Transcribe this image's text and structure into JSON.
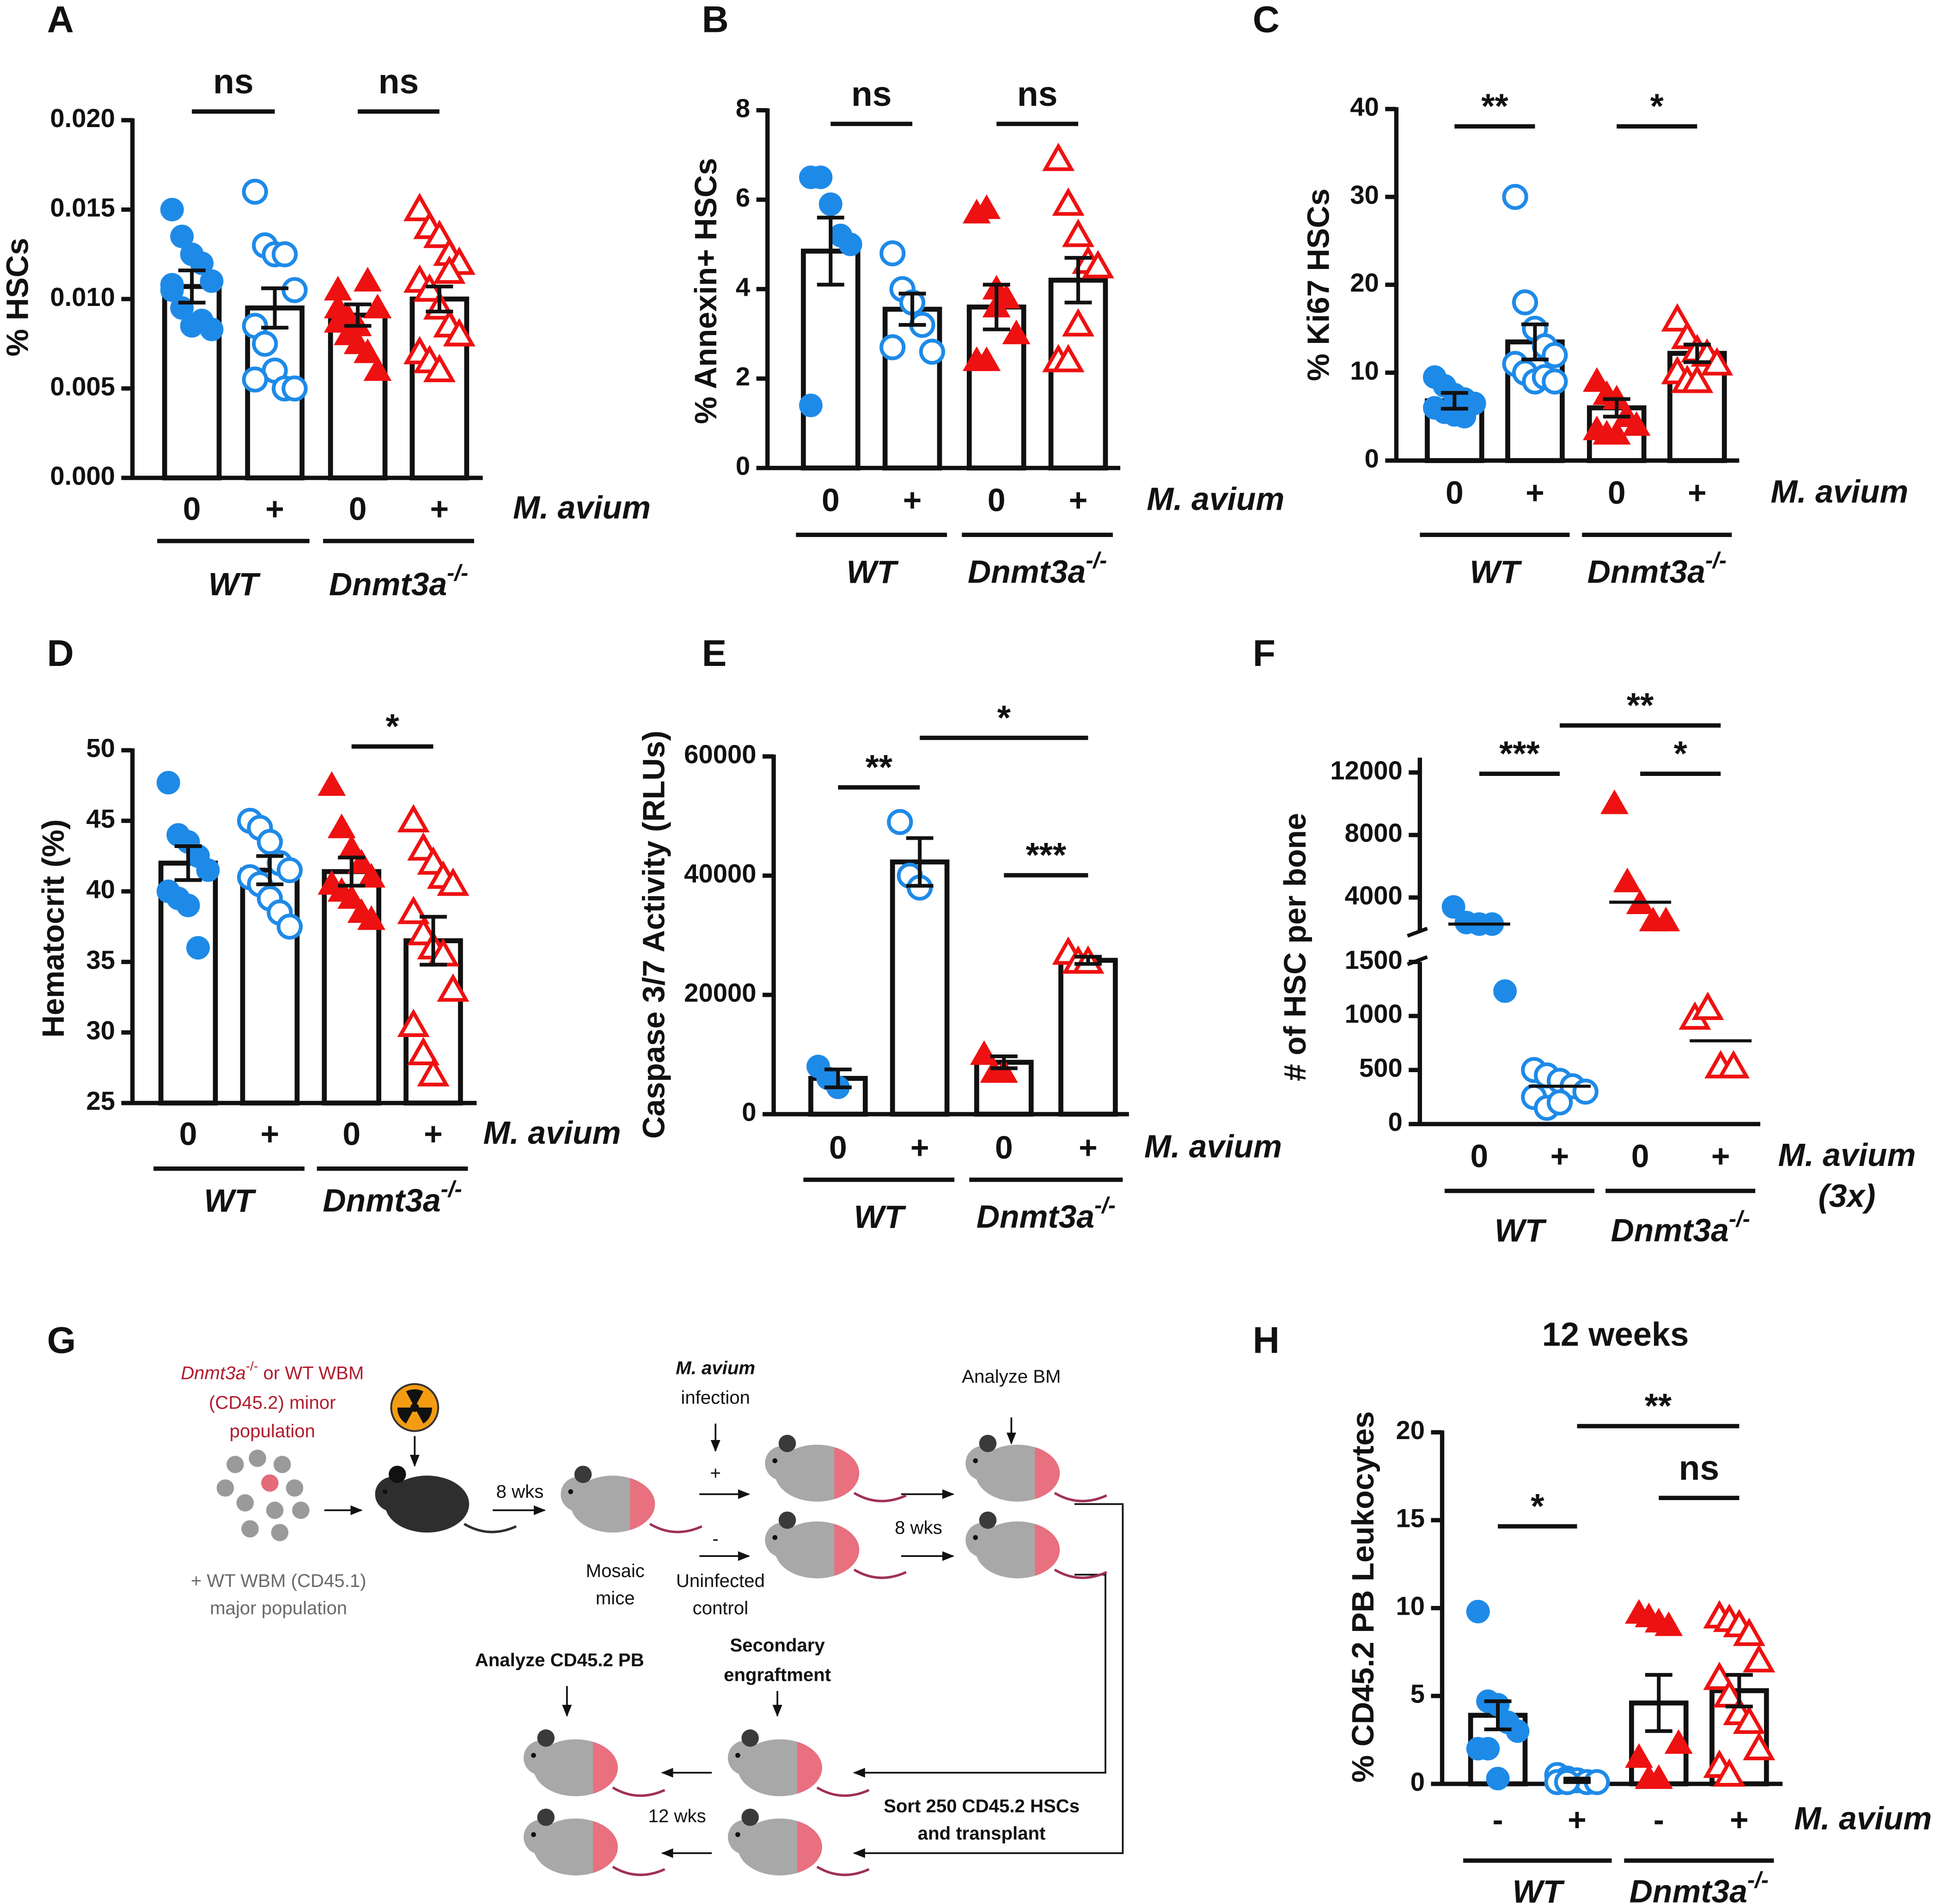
{
  "chart_data": [
    {
      "type": "bar",
      "panel": "A",
      "ylabel": "% HSCs",
      "categories": [
        "0",
        "+",
        "0",
        "+"
      ],
      "factor_label": "M. avium",
      "groups": [
        "WT",
        "Dnmt3a-/-"
      ],
      "colors": [
        "#1e8ae8",
        "#1e8ae8",
        "#ee1111",
        "#ee1111"
      ],
      "markers": [
        "filled-circle",
        "open-circle",
        "filled-triangle",
        "open-triangle"
      ],
      "ylim": [
        0,
        0.02
      ],
      "yticks": [
        {
          "value": 0,
          "label": "0.000"
        },
        {
          "value": 0.005,
          "label": "0.005"
        },
        {
          "value": 0.01,
          "label": "0.010"
        },
        {
          "value": 0.015,
          "label": "0.015"
        },
        {
          "value": 0.02,
          "label": "0.020"
        }
      ],
      "means": [
        0.0107,
        0.0095,
        0.0091,
        0.01
      ],
      "errors": [
        0.0009,
        0.0011,
        0.0006,
        0.0007
      ],
      "points": [
        [
          0.015,
          0.0135,
          0.0125,
          0.012,
          0.011,
          0.0105,
          0.0095,
          0.0085,
          0.0088,
          0.0083,
          0.0108
        ],
        [
          0.016,
          0.013,
          0.0125,
          0.0125,
          0.0105,
          0.0085,
          0.0075,
          0.006,
          0.005,
          0.005,
          0.0055
        ],
        [
          0.0095,
          0.009,
          0.0085,
          0.011,
          0.0095,
          0.0087,
          0.008,
          0.0075,
          0.007,
          0.006,
          0.0105
        ],
        [
          0.015,
          0.014,
          0.0135,
          0.0125,
          0.012,
          0.011,
          0.0105,
          0.0095,
          0.0085,
          0.008,
          0.007,
          0.0065,
          0.006,
          0.0115
        ]
      ],
      "annotations": [
        {
          "text": "ns",
          "between": [
            0,
            1
          ]
        },
        {
          "text": "ns",
          "between": [
            2,
            3
          ]
        }
      ]
    },
    {
      "type": "bar",
      "panel": "B",
      "ylabel": "% Annexin+ HSCs",
      "categories": [
        "0",
        "+",
        "0",
        "+"
      ],
      "factor_label": "M. avium",
      "groups": [
        "WT",
        "Dnmt3a-/-"
      ],
      "colors": [
        "#1e8ae8",
        "#1e8ae8",
        "#ee1111",
        "#ee1111"
      ],
      "markers": [
        "filled-circle",
        "open-circle",
        "filled-triangle",
        "open-triangle"
      ],
      "ylim": [
        0,
        8
      ],
      "yticks": [
        0,
        2,
        4,
        6,
        8
      ],
      "means": [
        4.85,
        3.55,
        3.6,
        4.2
      ],
      "errors": [
        0.75,
        0.35,
        0.5,
        0.5
      ],
      "points": [
        [
          6.5,
          6.5,
          5.9,
          5.2,
          5.0,
          1.4
        ],
        [
          4.8,
          4.0,
          3.7,
          3.2,
          2.6,
          2.7
        ],
        [
          5.7,
          5.8,
          4.0,
          3.8,
          3.0,
          2.4,
          2.4,
          3.6
        ],
        [
          6.9,
          5.9,
          5.2,
          4.6,
          4.5,
          2.4,
          2.4,
          3.2
        ]
      ],
      "annotations": [
        {
          "text": "ns",
          "between": [
            0,
            1
          ]
        },
        {
          "text": "ns",
          "between": [
            2,
            3
          ]
        }
      ]
    },
    {
      "type": "bar",
      "panel": "C",
      "ylabel": "% Ki67 HSCs",
      "categories": [
        "0",
        "+",
        "0",
        "+"
      ],
      "factor_label": "M. avium",
      "groups": [
        "WT",
        "Dnmt3a-/-"
      ],
      "colors": [
        "#1e8ae8",
        "#1e8ae8",
        "#ee1111",
        "#ee1111"
      ],
      "markers": [
        "filled-circle",
        "open-circle",
        "filled-triangle",
        "open-triangle"
      ],
      "ylim": [
        0,
        40
      ],
      "yticks": [
        0,
        10,
        20,
        30,
        40
      ],
      "means": [
        6.8,
        13.5,
        6.0,
        12.2
      ],
      "errors": [
        0.9,
        2.0,
        1.0,
        1.0
      ],
      "points": [
        [
          9.5,
          8.5,
          7.5,
          7,
          6.5,
          6,
          5.5,
          5.2,
          5
        ],
        [
          30,
          18,
          15,
          13,
          12,
          11,
          10,
          9,
          9.5,
          9
        ],
        [
          9,
          7.5,
          7,
          5,
          4,
          3.5,
          3,
          3
        ],
        [
          16,
          14,
          12.5,
          12,
          11,
          10,
          9,
          9
        ]
      ],
      "annotations": [
        {
          "text": "**",
          "between": [
            0,
            1
          ]
        },
        {
          "text": "*",
          "between": [
            2,
            3
          ]
        }
      ]
    },
    {
      "type": "bar",
      "panel": "D",
      "ylabel": "Hematocrit (%)",
      "categories": [
        "0",
        "+",
        "0",
        "+"
      ],
      "factor_label": "M. avium",
      "groups": [
        "WT",
        "Dnmt3a-/-"
      ],
      "colors": [
        "#1e8ae8",
        "#1e8ae8",
        "#ee1111",
        "#ee1111"
      ],
      "markers": [
        "filled-circle",
        "open-circle",
        "filled-triangle",
        "open-triangle"
      ],
      "ylim": [
        25,
        50
      ],
      "yticks": [
        25,
        30,
        35,
        40,
        45,
        50
      ],
      "means": [
        42.0,
        41.5,
        41.4,
        36.5
      ],
      "errors": [
        1.2,
        1.0,
        1.0,
        1.7
      ],
      "points": [
        [
          47.7,
          44,
          43.5,
          42.5,
          41.5,
          40,
          39.5,
          39,
          36
        ],
        [
          45,
          44.5,
          43.5,
          42,
          41.5,
          41,
          40.5,
          39.5,
          38.5,
          37.5
        ],
        [
          47.5,
          44.5,
          43,
          42,
          41,
          40.5,
          40,
          39.5,
          38.5,
          38
        ],
        [
          45,
          43,
          42,
          41,
          40.5,
          38.5,
          37,
          36,
          35.5,
          33,
          30.5,
          28.5,
          27
        ]
      ],
      "annotations": [
        {
          "text": "*",
          "between": [
            2,
            3
          ]
        }
      ]
    },
    {
      "type": "bar",
      "panel": "E",
      "ylabel": "Caspase 3/7 Activity (RLUs)",
      "categories": [
        "0",
        "+",
        "0",
        "+"
      ],
      "factor_label": "M. avium",
      "groups": [
        "WT",
        "Dnmt3a-/-"
      ],
      "colors": [
        "#1e8ae8",
        "#1e8ae8",
        "#ee1111",
        "#ee1111"
      ],
      "markers": [
        "filled-circle",
        "open-circle",
        "filled-triangle",
        "open-triangle"
      ],
      "ylim": [
        0,
        60000
      ],
      "yticks": [
        0,
        20000,
        40000,
        60000
      ],
      "means": [
        6000,
        42300,
        8700,
        25800
      ],
      "errors": [
        1500,
        4000,
        1000,
        600
      ],
      "points": [
        [
          8000,
          6000,
          4500
        ],
        [
          49000,
          40000,
          38000
        ],
        [
          10000,
          7000,
          7000
        ],
        [
          27000,
          25500,
          25500
        ]
      ],
      "annotations": [
        {
          "text": "**",
          "between": [
            0,
            1
          ]
        },
        {
          "text": "*",
          "between": [
            1,
            3
          ]
        },
        {
          "text": "***",
          "between": [
            2,
            3
          ]
        }
      ]
    },
    {
      "type": "dot",
      "panel": "F",
      "ylabel": "# of HSC per bone",
      "categories": [
        "0",
        "+",
        "0",
        "+"
      ],
      "factor_label": "M. avium",
      "factor_note": "(3x)",
      "groups": [
        "WT",
        "Dnmt3a-/-"
      ],
      "colors": [
        "#1e8ae8",
        "#1e8ae8",
        "#ee1111",
        "#ee1111"
      ],
      "markers": [
        "filled-circle",
        "open-circle",
        "filled-triangle",
        "open-triangle"
      ],
      "ylim": [
        0,
        1500
      ],
      "yticks": [
        0,
        500,
        1000,
        1500
      ],
      "ylim_upper": [
        1860,
        12950
      ],
      "yticks_upper": [
        4000,
        8000,
        12000
      ],
      "medians": [
        2300,
        350,
        3700,
        770
      ],
      "points": [
        [
          3400,
          2400,
          2300,
          2300,
          1230
        ],
        [
          500,
          450,
          400,
          350,
          300,
          250,
          150,
          200
        ],
        [
          10000,
          5000,
          3600,
          2500,
          2500
        ],
        [
          980,
          1070,
          530,
          530
        ]
      ],
      "annotations": [
        {
          "text": "***",
          "between": [
            0,
            1
          ]
        },
        {
          "text": "**",
          "between": [
            1,
            3
          ]
        },
        {
          "text": "*",
          "between": [
            2,
            3
          ]
        }
      ]
    },
    {
      "type": "bar",
      "panel": "H",
      "title": "12 weeks",
      "ylabel": "% CD45.2 PB Leukocytes",
      "categories": [
        "-",
        "+",
        "-",
        "+"
      ],
      "factor_label": "M. avium",
      "groups": [
        "WT",
        "Dnmt3a-/-"
      ],
      "colors": [
        "#1e8ae8",
        "#1e8ae8",
        "#ee1111",
        "#ee1111"
      ],
      "markers": [
        "filled-circle",
        "open-circle",
        "filled-triangle",
        "open-triangle"
      ],
      "ylim": [
        0,
        20
      ],
      "yticks": [
        0,
        5,
        10,
        15,
        20
      ],
      "means": [
        3.9,
        0.2,
        4.6,
        5.3
      ],
      "errors": [
        0.8,
        0.1,
        1.6,
        0.9
      ],
      "points": [
        [
          9.8,
          4.7,
          4.5,
          3.5,
          3.0,
          2.0,
          2.0,
          0.3
        ],
        [
          0.5,
          0.3,
          0.2,
          0.1,
          0.1,
          0.1,
          0.1
        ],
        [
          9.7,
          9.5,
          9.2,
          9.0,
          2.3,
          1.5,
          0.3,
          0.3
        ],
        [
          9.5,
          9.3,
          9.0,
          8.5,
          7,
          6,
          5,
          4,
          3.5,
          2,
          1,
          0.5
        ]
      ],
      "annotations": [
        {
          "text": "*",
          "between": [
            0,
            1
          ]
        },
        {
          "text": "**",
          "between": [
            1,
            3
          ]
        },
        {
          "text": "ns",
          "between": [
            2,
            3
          ]
        }
      ]
    }
  ],
  "diagram": {
    "panel": "G",
    "labels": [
      "Dnmt3a-/- or WT WBM",
      "(CD45.2) minor",
      "population",
      "+ WT WBM (CD45.1)",
      "major population",
      "8 wks",
      "Mosaic",
      "mice",
      "M. avium",
      "infection",
      "+",
      "-",
      "Uninfected",
      "control",
      "8 wks",
      "Analyze BM",
      "Analyze CD45.2 PB",
      "Secondary",
      "engraftment",
      "Sort 250 CD45.2 HSCs",
      "and transplant",
      "12 wks"
    ]
  }
}
